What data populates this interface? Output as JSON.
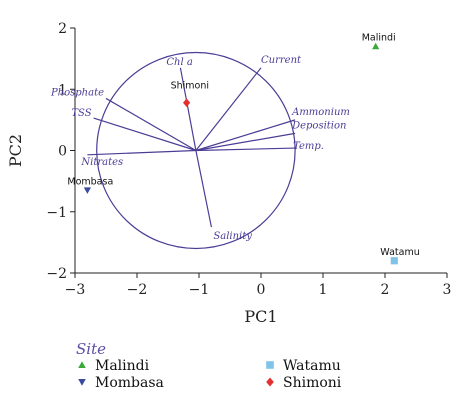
{
  "chart_data": {
    "type": "scatter",
    "xlabel": "PC1",
    "ylabel": "PC2",
    "xlim": [
      -3,
      3
    ],
    "ylim": [
      -2,
      2
    ],
    "xticks": [
      "−3",
      "−2",
      "−1",
      "0",
      "1",
      "2",
      "3"
    ],
    "yticks": [
      "−2",
      "−1",
      "0",
      "1",
      "2"
    ],
    "circle": {
      "center": [
        -1.05,
        0
      ],
      "radius": 1.6
    },
    "loadings": [
      {
        "label": "Chl a",
        "x": -1.3,
        "y": 1.35
      },
      {
        "label": "Current",
        "x": 0.0,
        "y": 1.35
      },
      {
        "label": "Phosphate",
        "x": -2.5,
        "y": 0.85
      },
      {
        "label": "TSS",
        "x": -2.7,
        "y": 0.53
      },
      {
        "label": "Ammonium",
        "x": 0.55,
        "y": 0.5
      },
      {
        "label": "Deposition",
        "x": 0.55,
        "y": 0.28
      },
      {
        "label": "Nitrates",
        "x": -2.8,
        "y": -0.07
      },
      {
        "label": "Temp.",
        "x": 0.55,
        "y": 0.04
      },
      {
        "label": "Salinity",
        "x": -0.8,
        "y": -1.25
      }
    ],
    "sites": [
      {
        "label": "Malindi",
        "x": 1.85,
        "y": 1.7,
        "shape": "triangle-up",
        "color": "#3aa83a"
      },
      {
        "label": "Mombasa",
        "x": -2.8,
        "y": -0.65,
        "shape": "triangle-down",
        "color": "#3a4a9e"
      },
      {
        "label": "Watamu",
        "x": 2.15,
        "y": -1.8,
        "shape": "square",
        "color": "#7fc4e8"
      },
      {
        "label": "Shimoni",
        "x": -1.2,
        "y": 0.78,
        "shape": "diamond",
        "color": "#e33030"
      }
    ],
    "legend": {
      "title": "Site",
      "entries": [
        "Malindi",
        "Mombasa",
        "Watamu",
        "Shimoni"
      ],
      "placement": "bottom"
    },
    "colors": {
      "vectors": "#4a3d96",
      "axes": "#222222"
    }
  }
}
